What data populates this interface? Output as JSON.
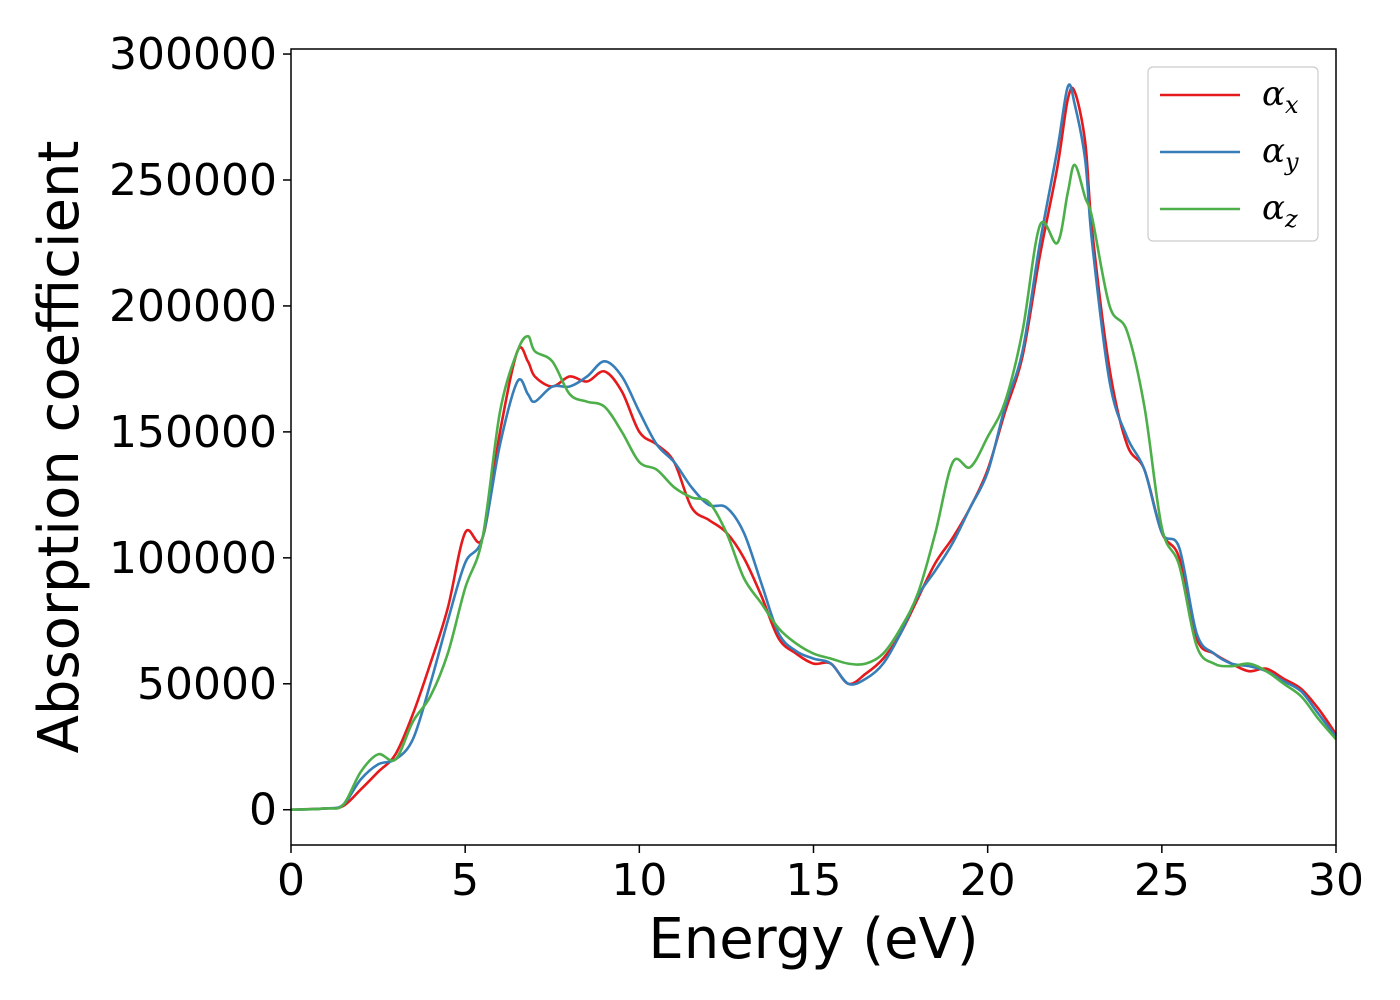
{
  "chart_data": {
    "type": "line",
    "title": "",
    "xlabel": "Energy (eV)",
    "ylabel": "Absorption coefficient",
    "xlim": [
      0,
      30
    ],
    "ylim": [
      -14000,
      302000
    ],
    "xticks": [
      "0",
      "5",
      "10",
      "15",
      "20",
      "25",
      "30"
    ],
    "yticks": [
      "0",
      "50000",
      "100000",
      "150000",
      "200000",
      "250000",
      "300000"
    ],
    "grid": false,
    "legend_position": "top-right",
    "series": [
      {
        "name": "α",
        "subscript": "x",
        "color": "#e41a1c",
        "x": [
          0,
          1.0,
          1.5,
          2.0,
          2.5,
          3.0,
          3.5,
          4.0,
          4.5,
          5.0,
          5.5,
          6.0,
          6.5,
          6.8,
          7.0,
          7.5,
          8.0,
          8.5,
          9.0,
          9.5,
          10.0,
          10.5,
          11.0,
          11.5,
          12.0,
          12.5,
          13.0,
          13.5,
          14.0,
          14.5,
          15.0,
          15.5,
          16.0,
          16.5,
          17.0,
          17.5,
          18.0,
          18.5,
          19.0,
          19.5,
          20.0,
          20.5,
          21.0,
          21.5,
          22.0,
          22.3,
          22.5,
          22.8,
          23.0,
          23.5,
          24.0,
          24.5,
          25.0,
          25.5,
          26.0,
          26.5,
          27.0,
          27.5,
          28.0,
          28.5,
          29.0,
          29.5,
          30.0
        ],
        "values": [
          0,
          500,
          1500,
          8000,
          15000,
          22000,
          38000,
          58000,
          80000,
          110000,
          108000,
          150000,
          182000,
          178000,
          172000,
          168000,
          172000,
          170000,
          174000,
          166000,
          150000,
          145000,
          138000,
          120000,
          115000,
          110000,
          100000,
          85000,
          68000,
          62000,
          58000,
          58000,
          50000,
          54000,
          60000,
          70000,
          84000,
          98000,
          108000,
          120000,
          135000,
          158000,
          180000,
          220000,
          255000,
          282000,
          285000,
          265000,
          230000,
          175000,
          145000,
          135000,
          110000,
          100000,
          68000,
          62000,
          58000,
          55000,
          56000,
          52000,
          48000,
          40000,
          30000
        ]
      },
      {
        "name": "α",
        "subscript": "y",
        "color": "#377eb8",
        "x": [
          0,
          1.0,
          1.5,
          2.0,
          2.5,
          3.0,
          3.5,
          4.0,
          4.5,
          5.0,
          5.5,
          6.0,
          6.5,
          6.8,
          7.0,
          7.5,
          8.0,
          8.5,
          9.0,
          9.5,
          10.0,
          10.5,
          11.0,
          11.5,
          12.0,
          12.5,
          13.0,
          13.5,
          14.0,
          14.5,
          15.0,
          15.5,
          16.0,
          16.5,
          17.0,
          17.5,
          18.0,
          18.5,
          19.0,
          19.5,
          20.0,
          20.5,
          21.0,
          21.5,
          22.0,
          22.3,
          22.5,
          22.8,
          23.0,
          23.5,
          24.0,
          24.5,
          25.0,
          25.5,
          26.0,
          26.5,
          27.0,
          27.5,
          28.0,
          28.5,
          29.0,
          29.5,
          30.0
        ],
        "values": [
          0,
          500,
          2000,
          12000,
          18000,
          20000,
          28000,
          50000,
          75000,
          98000,
          108000,
          145000,
          170000,
          165000,
          162000,
          168000,
          168000,
          172000,
          178000,
          172000,
          158000,
          145000,
          138000,
          128000,
          121000,
          120000,
          110000,
          90000,
          70000,
          63000,
          60000,
          58000,
          50000,
          52000,
          58000,
          70000,
          85000,
          95000,
          106000,
          120000,
          134000,
          160000,
          182000,
          225000,
          262000,
          287000,
          280000,
          258000,
          225000,
          170000,
          148000,
          135000,
          110000,
          104000,
          70000,
          62000,
          58000,
          57000,
          55000,
          51000,
          47000,
          38000,
          29000
        ]
      },
      {
        "name": "α",
        "subscript": "z",
        "color": "#4daf4a",
        "x": [
          0,
          1.0,
          1.5,
          2.0,
          2.5,
          3.0,
          3.5,
          4.0,
          4.5,
          5.0,
          5.5,
          6.0,
          6.5,
          6.8,
          7.0,
          7.5,
          8.0,
          8.5,
          9.0,
          9.5,
          10.0,
          10.5,
          11.0,
          11.5,
          12.0,
          12.5,
          13.0,
          13.5,
          14.0,
          14.5,
          15.0,
          15.5,
          16.0,
          16.5,
          17.0,
          17.5,
          18.0,
          18.5,
          19.0,
          19.5,
          20.0,
          20.5,
          21.0,
          21.5,
          22.0,
          22.3,
          22.5,
          22.8,
          23.0,
          23.5,
          24.0,
          24.5,
          25.0,
          25.5,
          26.0,
          26.5,
          27.0,
          27.5,
          28.0,
          28.5,
          29.0,
          29.5,
          30.0
        ],
        "values": [
          0,
          500,
          2000,
          15000,
          22000,
          20000,
          35000,
          45000,
          62000,
          88000,
          108000,
          158000,
          182000,
          188000,
          182000,
          178000,
          165000,
          162000,
          160000,
          150000,
          138000,
          135000,
          128000,
          124000,
          122000,
          110000,
          92000,
          82000,
          72000,
          66000,
          62000,
          60000,
          58000,
          58000,
          62000,
          72000,
          86000,
          110000,
          138000,
          136000,
          148000,
          162000,
          190000,
          232000,
          225000,
          245000,
          256000,
          243000,
          235000,
          200000,
          190000,
          160000,
          112000,
          97000,
          65000,
          58000,
          57000,
          58000,
          55000,
          50000,
          45000,
          36000,
          28000
        ]
      }
    ]
  }
}
